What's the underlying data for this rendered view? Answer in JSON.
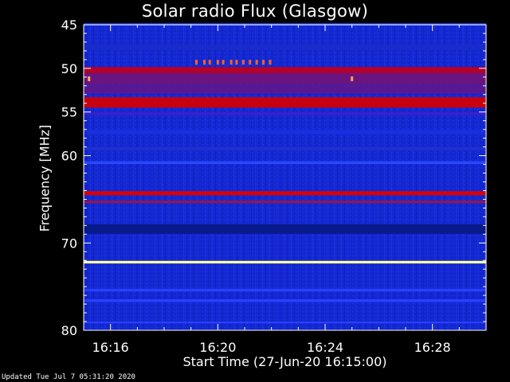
{
  "chart_data": {
    "type": "heatmap",
    "title": "Solar radio Flux (Glasgow)",
    "xlabel": "Start Time (27-Jun-20 16:15:00)",
    "ylabel": "Frequency [MHz]",
    "x_ticks": [
      "16:16",
      "16:20",
      "16:24",
      "16:28"
    ],
    "y_ticks": [
      45,
      50,
      55,
      60,
      70,
      80
    ],
    "y_tick_labels": [
      "45",
      "50",
      "55",
      "60",
      "70",
      "80"
    ],
    "xlim_minutes": [
      0,
      15
    ],
    "ylim_mhz": [
      45,
      80
    ],
    "bands": [
      {
        "freq": 45.0,
        "width": 0.3,
        "color": "#2040ff"
      },
      {
        "freq": 47.6,
        "width": 0.6,
        "color": "#1a2cc8"
      },
      {
        "freq": 50.3,
        "width": 0.9,
        "color": "#b4002a"
      },
      {
        "freq": 51.2,
        "width": 1.3,
        "color": "#6a1480"
      },
      {
        "freq": 52.4,
        "width": 1.0,
        "color": "#5a1890"
      },
      {
        "freq": 53.9,
        "width": 1.2,
        "color": "#c80010"
      },
      {
        "freq": 55.2,
        "width": 0.3,
        "color": "#3a20c8"
      },
      {
        "freq": 57.3,
        "width": 0.5,
        "color": "#1830e0"
      },
      {
        "freq": 59.2,
        "width": 0.4,
        "color": "#2030d0"
      },
      {
        "freq": 60.8,
        "width": 0.3,
        "color": "#2a48ff"
      },
      {
        "freq": 64.3,
        "width": 0.45,
        "color": "#dd0000"
      },
      {
        "freq": 65.3,
        "width": 0.25,
        "color": "#b01030"
      },
      {
        "freq": 68.4,
        "width": 1.1,
        "color": "#081a8a"
      },
      {
        "freq": 72.2,
        "width": 0.3,
        "color": "#ffff50"
      },
      {
        "freq": 72.2,
        "width": 0.12,
        "color": "#ffffff"
      },
      {
        "freq": 75.4,
        "width": 0.3,
        "color": "#2a40ff"
      },
      {
        "freq": 76.6,
        "width": 0.3,
        "color": "#2a40ff"
      },
      {
        "freq": 79.1,
        "width": 0.2,
        "color": "#2a40ff"
      }
    ],
    "bursts": [
      {
        "time": 0.2,
        "freq": 51.2,
        "color": "#ffb050"
      },
      {
        "time": 10.0,
        "freq": 51.2,
        "color": "#ffa040"
      },
      {
        "time": 4.2,
        "freq": 49.3,
        "color": "#ff6020"
      },
      {
        "time": 4.5,
        "freq": 49.3,
        "color": "#ff6020"
      },
      {
        "time": 4.7,
        "freq": 49.3,
        "color": "#ff6020"
      },
      {
        "time": 5.0,
        "freq": 49.3,
        "color": "#ff6020"
      },
      {
        "time": 5.2,
        "freq": 49.3,
        "color": "#ff6020"
      },
      {
        "time": 5.5,
        "freq": 49.3,
        "color": "#ff6020"
      },
      {
        "time": 5.7,
        "freq": 49.3,
        "color": "#ff6020"
      },
      {
        "time": 5.95,
        "freq": 49.3,
        "color": "#ff6020"
      },
      {
        "time": 6.2,
        "freq": 49.3,
        "color": "#ff6020"
      },
      {
        "time": 6.45,
        "freq": 49.3,
        "color": "#ff6020"
      },
      {
        "time": 6.7,
        "freq": 49.3,
        "color": "#ff6020"
      },
      {
        "time": 6.95,
        "freq": 49.3,
        "color": "#ff6020"
      }
    ],
    "colors": {
      "background": "#000000",
      "base": "#1428d2",
      "axis": "#ffffff"
    }
  },
  "footer": {
    "updated": "Updated Tue Jul  7 05:31:20 2020"
  }
}
